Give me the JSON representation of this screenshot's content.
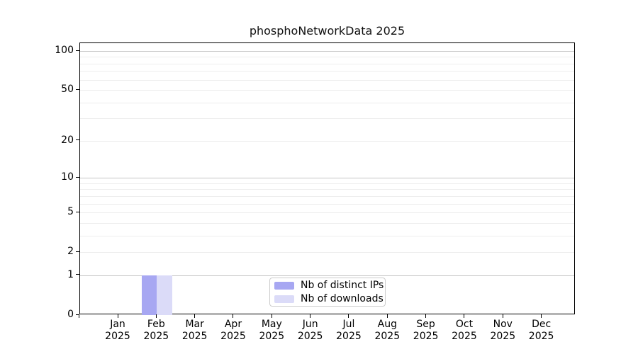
{
  "title": "phosphoNetworkData 2025",
  "chart_data": {
    "type": "bar",
    "title": "phosphoNetworkData 2025",
    "categories": [
      "Jan 2025",
      "Feb 2025",
      "Mar 2025",
      "Apr 2025",
      "May 2025",
      "Jun 2025",
      "Jul 2025",
      "Aug 2025",
      "Sep 2025",
      "Oct 2025",
      "Nov 2025",
      "Dec 2025"
    ],
    "series": [
      {
        "name": "Nb of distinct IPs",
        "color": "#a7a7f2",
        "values": [
          0,
          1,
          0,
          0,
          0,
          0,
          0,
          0,
          0,
          0,
          0,
          0
        ]
      },
      {
        "name": "Nb of downloads",
        "color": "#dbdbf8",
        "values": [
          0,
          1,
          0,
          0,
          0,
          0,
          0,
          0,
          0,
          0,
          0,
          0
        ]
      }
    ],
    "xlabel": "",
    "ylabel": "",
    "yscale": "log1p",
    "ylim": [
      0,
      115
    ],
    "yticks": [
      0,
      1,
      2,
      5,
      10,
      20,
      50,
      100
    ],
    "major_gridlines": [
      1,
      10,
      100
    ],
    "minor_gridlines": [
      2,
      3,
      4,
      5,
      6,
      7,
      8,
      9,
      20,
      30,
      40,
      50,
      60,
      70,
      80,
      90
    ],
    "grid": true,
    "legend_position": "inside-bottom-center"
  }
}
